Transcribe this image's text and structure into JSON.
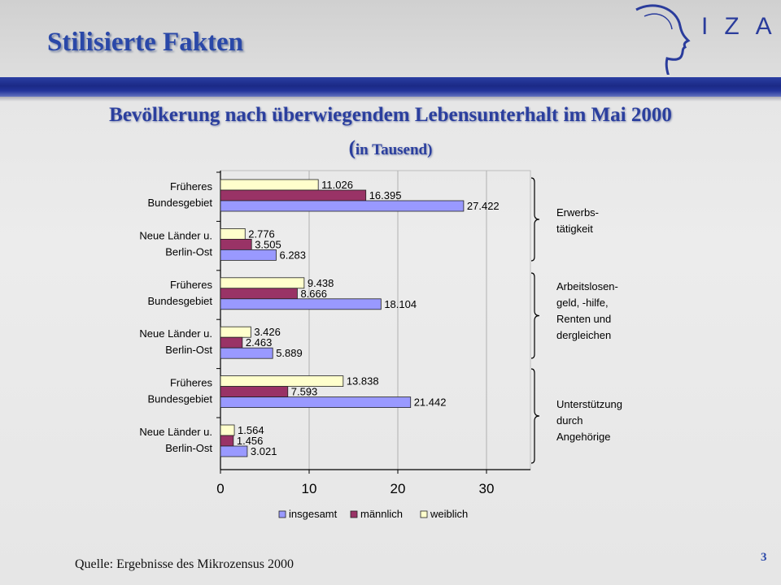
{
  "header": {
    "title": "Stilisierte Fakten",
    "logo_text": "IZA"
  },
  "chart_data": {
    "type": "bar",
    "orientation": "horizontal",
    "title": "Bevölkerung nach überwiegendem Lebensunterhalt im Mai 2000",
    "subtitle_paren": "(",
    "subtitle": "in Tausend)",
    "xlim": [
      0,
      35
    ],
    "xticks": [
      0,
      10,
      20,
      30
    ],
    "grid": "vertical",
    "legend_placement": "bottom",
    "categories": [
      [
        "Früheres",
        "Bundesgebiet"
      ],
      [
        "Neue Länder u.",
        "Berlin-Ost"
      ],
      [
        "Früheres",
        "Bundesgebiet"
      ],
      [
        "Neue Länder u.",
        "Berlin-Ost"
      ],
      [
        "Früheres",
        "Bundesgebiet"
      ],
      [
        "Neue Länder u.",
        "Berlin-Ost"
      ]
    ],
    "series": [
      {
        "name": "weiblich",
        "color": "#ffffcc",
        "values": [
          11.026,
          2.776,
          9.438,
          3.426,
          13.838,
          1.564
        ],
        "labels": [
          "11.026",
          "2.776",
          "9.438",
          "3.426",
          "13.838",
          "1.564"
        ]
      },
      {
        "name": "männlich",
        "color": "#993366",
        "values": [
          16.395,
          3.505,
          8.666,
          2.463,
          7.593,
          1.456
        ],
        "labels": [
          "16.395",
          "3.505",
          "8.666",
          "2.463",
          "7.593",
          "1.456"
        ]
      },
      {
        "name": "insgesamt",
        "color": "#9999ff",
        "values": [
          27.422,
          6.283,
          18.104,
          5.889,
          21.442,
          3.021
        ],
        "labels": [
          "27.422",
          "6.283",
          "18.104",
          "5.889",
          "21.442",
          "3.021"
        ]
      }
    ],
    "legend_order": [
      "insgesamt",
      "männlich",
      "weiblich"
    ],
    "group_labels": [
      [
        "Erwerbs-",
        "tätigkeit"
      ],
      [
        "Arbeitslosen-",
        "geld, -hilfe,",
        "Renten und",
        "dergleichen"
      ],
      [
        "Unterstützung",
        "durch",
        "Angehörige"
      ]
    ]
  },
  "footer": {
    "source": "Quelle: Ergebnisse des Mikrozensus 2000",
    "page_number": "3"
  }
}
